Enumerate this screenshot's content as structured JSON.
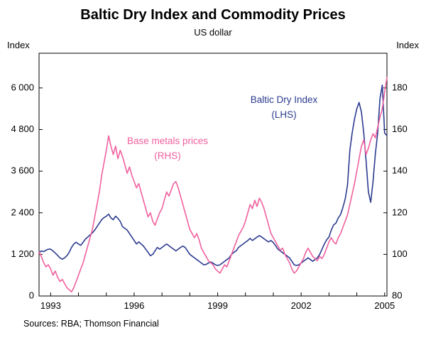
{
  "page": {
    "title": "Baltic Dry Index and Commodity Prices",
    "subtitle": "US dollar",
    "left_axis_title": "Index",
    "right_axis_title": "Index",
    "source": "Sources: RBA; Thomson Financial"
  },
  "annotations": {
    "bdi_line1": "Baltic Dry Index",
    "bdi_line2": "(LHS)",
    "metals_line1": "Base metals prices",
    "metals_line2": "(RHS)"
  },
  "colors": {
    "bdi_line": "#2b3a8f",
    "metals_line": "#f0609e",
    "axis": "#000000",
    "background": "#ffffff"
  },
  "chart_data": {
    "type": "line",
    "title": "Baltic Dry Index and Commodity Prices",
    "subtitle": "US dollar",
    "x_start": 1992.5833,
    "x_step": 0.0833333,
    "x_range": [
      1992.5833,
      2005.0833
    ],
    "left_axis": {
      "label": "Index",
      "range": [
        0,
        7000
      ],
      "ticks": [
        0,
        1200,
        2400,
        3600,
        4800,
        6000
      ],
      "tick_labels": [
        "0",
        "1 200",
        "2 400",
        "3 600",
        "4 800",
        "6 000"
      ]
    },
    "right_axis": {
      "label": "Index",
      "range": [
        80,
        196.67
      ],
      "ticks": [
        80,
        100,
        120,
        140,
        160,
        180
      ],
      "tick_labels": [
        "80",
        "100",
        "120",
        "140",
        "160",
        "180"
      ]
    },
    "x_axis": {
      "ticks": [
        1993,
        1994,
        1995,
        1996,
        1997,
        1998,
        1999,
        2000,
        2001,
        2002,
        2003,
        2004,
        2005
      ],
      "labeled_ticks": [
        1993,
        1996,
        1999,
        2002,
        2005
      ],
      "tick_labels": [
        "1993",
        "1996",
        "1999",
        "2002",
        "2005"
      ]
    },
    "legend_position": "annotated-on-plot",
    "grid": false,
    "series": [
      {
        "name": "Baltic Dry Index (LHS)",
        "axis": "left",
        "color": "#2b3a8f",
        "values": [
          1250,
          1300,
          1280,
          1320,
          1350,
          1350,
          1300,
          1240,
          1170,
          1100,
          1060,
          1100,
          1160,
          1260,
          1400,
          1500,
          1550,
          1500,
          1460,
          1550,
          1640,
          1700,
          1760,
          1820,
          1900,
          2000,
          2100,
          2200,
          2260,
          2300,
          2360,
          2250,
          2200,
          2300,
          2240,
          2150,
          2000,
          1950,
          1900,
          1800,
          1700,
          1600,
          1500,
          1560,
          1500,
          1440,
          1350,
          1260,
          1160,
          1200,
          1300,
          1400,
          1350,
          1400,
          1450,
          1500,
          1450,
          1400,
          1350,
          1300,
          1350,
          1400,
          1440,
          1400,
          1300,
          1200,
          1150,
          1100,
          1050,
          1000,
          950,
          900,
          910,
          950,
          980,
          950,
          900,
          880,
          900,
          950,
          1000,
          1050,
          1100,
          1200,
          1260,
          1300,
          1400,
          1450,
          1500,
          1550,
          1600,
          1660,
          1600,
          1650,
          1700,
          1740,
          1700,
          1650,
          1600,
          1560,
          1600,
          1540,
          1450,
          1350,
          1300,
          1250,
          1200,
          1150,
          1100,
          1000,
          900,
          880,
          900,
          950,
          1000,
          1050,
          1100,
          1050,
          1000,
          1050,
          1100,
          1200,
          1350,
          1500,
          1620,
          1700,
          1900,
          2050,
          2100,
          2250,
          2350,
          2550,
          2800,
          3200,
          4200,
          4700,
          5100,
          5400,
          5580,
          5300,
          4700,
          3900,
          3000,
          2700,
          3300,
          4100,
          4700,
          5700,
          6080,
          4700,
          4620
        ]
      },
      {
        "name": "Base metals prices (RHS)",
        "axis": "right",
        "color": "#f0609e",
        "values": [
          101,
          99,
          96,
          94,
          95,
          93,
          90,
          92,
          89,
          87,
          88,
          86,
          84,
          83,
          82,
          84,
          87,
          90,
          93,
          96,
          100,
          104,
          108,
          112,
          118,
          124,
          130,
          138,
          144,
          150,
          157,
          152,
          148,
          152,
          146,
          150,
          147,
          143,
          139,
          142,
          138,
          135,
          132,
          134,
          130,
          126,
          122,
          118,
          120,
          116,
          114,
          117,
          120,
          122,
          126,
          130,
          128,
          131,
          134,
          135,
          132,
          128,
          124,
          120,
          116,
          112,
          110,
          108,
          110,
          107,
          103,
          101,
          99,
          97,
          96,
          95,
          93,
          92,
          91,
          93,
          95,
          94,
          97,
          100,
          103,
          106,
          109,
          111,
          113,
          116,
          120,
          124,
          122,
          126,
          123,
          127,
          125,
          122,
          118,
          114,
          110,
          108,
          106,
          104,
          102,
          103,
          100,
          98,
          96,
          93,
          91,
          92,
          94,
          96,
          98,
          101,
          103,
          101,
          99,
          98,
          97,
          99,
          98,
          100,
          103,
          106,
          108,
          106,
          105,
          108,
          110,
          113,
          116,
          119,
          124,
          129,
          134,
          140,
          146,
          152,
          155,
          148,
          151,
          155,
          158,
          156,
          161,
          166,
          170,
          178,
          185
        ]
      }
    ]
  }
}
